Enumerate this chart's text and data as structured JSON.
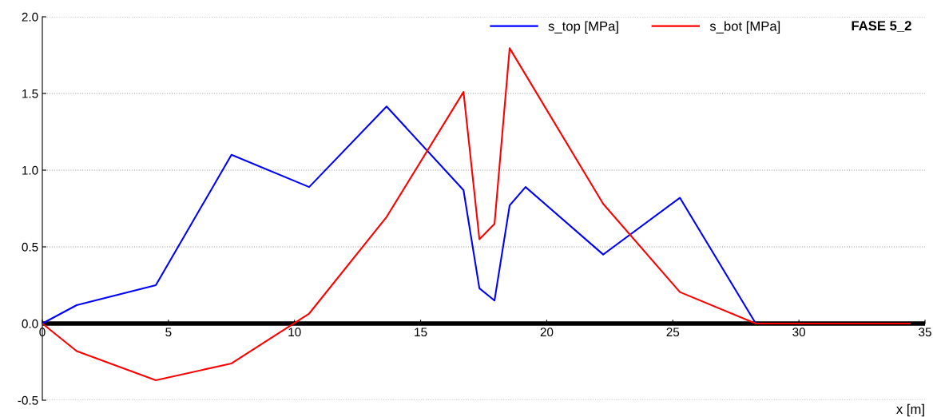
{
  "chart_data": {
    "type": "line",
    "title": "FASE 5_2",
    "xlabel": "x [m]",
    "xlim": [
      0,
      35
    ],
    "xticks": [
      0,
      5,
      10,
      15,
      20,
      25,
      30,
      35
    ],
    "ylim": [
      -0.5,
      2.0
    ],
    "yticks": [
      {
        "value": -0.5,
        "label": "-0.5"
      },
      {
        "value": 0,
        "label": "0.0"
      },
      {
        "value": 0.5,
        "label": "0.5"
      },
      {
        "value": 1.0,
        "label": "1.0"
      },
      {
        "value": 1.5,
        "label": "1.5"
      },
      {
        "value": 2.0,
        "label": "2.0"
      }
    ],
    "grid": "y",
    "legend": "top right",
    "marker": "none",
    "line_style": "solid",
    "ref_lines": [
      {
        "axis": "y",
        "value": 0,
        "color": "#000000"
      }
    ],
    "series": [
      {
        "name": "s_top [MPa]",
        "color": "#0000ff",
        "x": [
          0,
          1.36,
          4.5,
          7.5,
          10.58,
          13.65,
          16.7,
          17.33,
          17.93,
          18.53,
          19.16,
          22.24,
          25.28,
          28.29,
          34.4
        ],
        "values": [
          0,
          0.12,
          0.25,
          1.1,
          0.89,
          1.415,
          0.87,
          0.23,
          0.15,
          0.77,
          0.89,
          0.45,
          0.82,
          0,
          0
        ]
      },
      {
        "name": "s_bot [MPa]",
        "color": "#ff0000",
        "x": [
          0,
          1.36,
          4.5,
          7.5,
          10.58,
          13.65,
          16.7,
          17.33,
          17.93,
          18.53,
          22.24,
          25.28,
          28.29,
          34.4
        ],
        "values": [
          0,
          -0.18,
          -0.37,
          -0.26,
          0.065,
          0.695,
          1.51,
          0.55,
          0.65,
          1.795,
          0.78,
          0.205,
          0,
          0
        ]
      }
    ]
  }
}
